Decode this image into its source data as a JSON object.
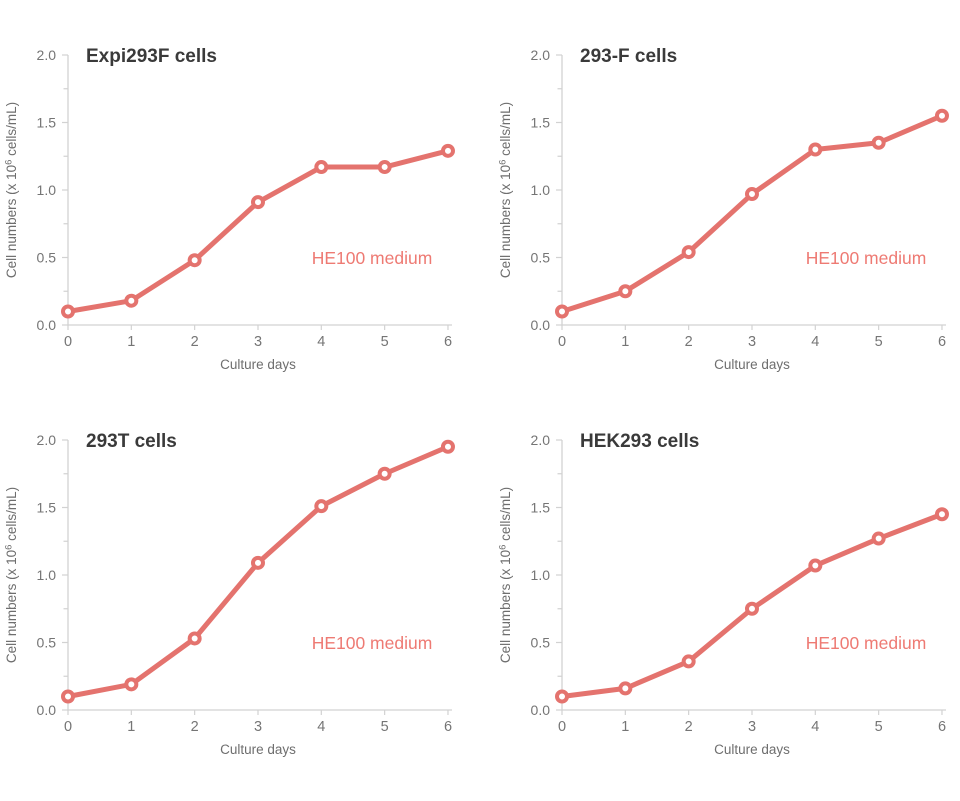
{
  "figure": {
    "background_color": "#ffffff",
    "description_colors": {
      "series_line": "#e4736e",
      "marker_fill": "#ffffff",
      "annotation_text": "#ee7a73",
      "chart_title": "#3a3a3a",
      "axis_line": "#d2d2d2",
      "tick_label": "#757575",
      "axis_title": "#6e6e6e"
    }
  },
  "chart_data": [
    {
      "type": "line",
      "title": "Expi293F cells",
      "xlabel": "Culture days",
      "ylabel": "Cell numbers (x 10⁶ cells/mL)",
      "annotation": "HE100 medium",
      "annotation_position": "inside lower right",
      "grid": false,
      "marker": "open-circle",
      "x": [
        0,
        1,
        2,
        3,
        4,
        5,
        6
      ],
      "values": [
        0.1,
        0.18,
        0.48,
        0.91,
        1.17,
        1.17,
        1.29
      ],
      "xlim": [
        0,
        6
      ],
      "ylim": [
        0,
        2.0
      ],
      "xtick_labels": [
        "0",
        "1",
        "2",
        "3",
        "4",
        "5",
        "6"
      ],
      "ytick_labels": [
        "0.0",
        "0.5",
        "1.0",
        "1.5",
        "2.0"
      ],
      "yticks": [
        0.0,
        0.5,
        1.0,
        1.5,
        2.0
      ],
      "minor_ytick_step": 0.25
    },
    {
      "type": "line",
      "title": "293-F cells",
      "xlabel": "Culture days",
      "ylabel": "Cell numbers (x 10⁶ cells/mL)",
      "annotation": "HE100 medium",
      "annotation_position": "inside lower right",
      "grid": false,
      "marker": "open-circle",
      "x": [
        0,
        1,
        2,
        3,
        4,
        5,
        6
      ],
      "values": [
        0.1,
        0.25,
        0.54,
        0.97,
        1.3,
        1.35,
        1.55
      ],
      "xlim": [
        0,
        6
      ],
      "ylim": [
        0,
        2.0
      ],
      "xtick_labels": [
        "0",
        "1",
        "2",
        "3",
        "4",
        "5",
        "6"
      ],
      "ytick_labels": [
        "0.0",
        "0.5",
        "1.0",
        "1.5",
        "2.0"
      ],
      "yticks": [
        0.0,
        0.5,
        1.0,
        1.5,
        2.0
      ],
      "minor_ytick_step": 0.25
    },
    {
      "type": "line",
      "title": "293T cells",
      "xlabel": "Culture days",
      "ylabel": "Cell numbers (x 10⁶ cells/mL)",
      "annotation": "HE100 medium",
      "annotation_position": "inside lower right",
      "grid": false,
      "marker": "open-circle",
      "x": [
        0,
        1,
        2,
        3,
        4,
        5,
        6
      ],
      "values": [
        0.1,
        0.19,
        0.53,
        1.09,
        1.51,
        1.75,
        1.95
      ],
      "xlim": [
        0,
        6
      ],
      "ylim": [
        0,
        2.0
      ],
      "xtick_labels": [
        "0",
        "1",
        "2",
        "3",
        "4",
        "5",
        "6"
      ],
      "ytick_labels": [
        "0.0",
        "0.5",
        "1.0",
        "1.5",
        "2.0"
      ],
      "yticks": [
        0.0,
        0.5,
        1.0,
        1.5,
        2.0
      ],
      "minor_ytick_step": 0.25
    },
    {
      "type": "line",
      "title": "HEK293 cells",
      "xlabel": "Culture days",
      "ylabel": "Cell numbers (x 10⁶ cells/mL)",
      "annotation": "HE100 medium",
      "annotation_position": "inside lower right",
      "grid": false,
      "marker": "open-circle",
      "x": [
        0,
        1,
        2,
        3,
        4,
        5,
        6
      ],
      "values": [
        0.1,
        0.16,
        0.36,
        0.75,
        1.07,
        1.27,
        1.45
      ],
      "xlim": [
        0,
        6
      ],
      "ylim": [
        0,
        2.0
      ],
      "xtick_labels": [
        "0",
        "1",
        "2",
        "3",
        "4",
        "5",
        "6"
      ],
      "ytick_labels": [
        "0.0",
        "0.5",
        "1.0",
        "1.5",
        "2.0"
      ],
      "yticks": [
        0.0,
        0.5,
        1.0,
        1.5,
        2.0
      ],
      "minor_ytick_step": 0.25
    }
  ]
}
